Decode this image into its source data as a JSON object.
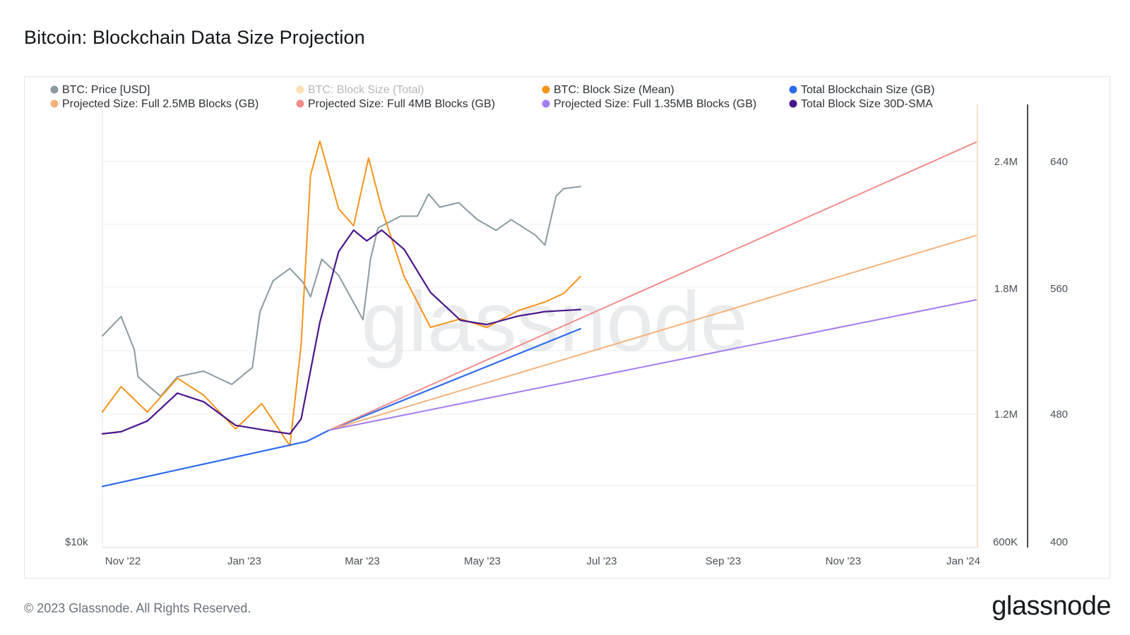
{
  "title": "Bitcoin: Blockchain Data Size Projection",
  "footer": {
    "copyright": "© 2023 Glassnode. All Rights Reserved.",
    "brand": "glassnode"
  },
  "watermark": "glassnode",
  "colors": {
    "price": "#8a9aa0",
    "block_total": "#f5a623",
    "block_mean": "#f7931a",
    "blockchain_size": "#2e6bf0",
    "proj_2_5mb": "#f6b27a",
    "proj_4mb": "#f28c8c",
    "proj_1_35mb": "#a57cf2",
    "sma30": "#4a148c"
  },
  "chart_data": {
    "type": "line",
    "title": "Bitcoin: Blockchain Data Size Projection",
    "x_ticks": [
      "Nov '22",
      "Jan '23",
      "Mar '23",
      "May '23",
      "Jul '23",
      "Sep '23",
      "Nov '23",
      "Jan '24"
    ],
    "y_left_ticks": [
      "$10k"
    ],
    "y_right_ticks": [
      "2.4M",
      "1.8M",
      "1.2M",
      "600K"
    ],
    "y_right2_ticks": [
      "640",
      "560",
      "480",
      "400"
    ],
    "y_right_range": [
      600000,
      2400000
    ],
    "y_right2_range": [
      400,
      640
    ],
    "grid": true,
    "legend_position": "top",
    "legend": [
      {
        "name": "BTC: Price [USD]",
        "color_key": "price",
        "faded": false
      },
      {
        "name": "BTC: Block Size (Total)",
        "color_key": "block_total",
        "faded": true
      },
      {
        "name": "BTC: Block Size (Mean)",
        "color_key": "block_mean",
        "faded": false
      },
      {
        "name": "Total Blockchain Size (GB)",
        "color_key": "blockchain_size",
        "faded": false
      },
      {
        "name": "Projected Size: Full 2.5MB Blocks (GB)",
        "color_key": "proj_2_5mb",
        "faded": false
      },
      {
        "name": "Projected Size: Full 4MB Blocks (GB)",
        "color_key": "proj_4mb",
        "faded": false
      },
      {
        "name": "Projected Size: Full 1.35MB Blocks (GB)",
        "color_key": "proj_1_35mb",
        "faded": false
      },
      {
        "name": "Total Block Size 30D-SMA",
        "color_key": "sma30",
        "faded": false
      }
    ],
    "series": [
      {
        "name": "BTC: Price [USD]",
        "color_key": "price",
        "x": [
          "2022-10-22",
          "2022-11-01",
          "2022-11-08",
          "2022-11-10",
          "2022-11-22",
          "2022-12-01",
          "2022-12-15",
          "2022-12-30",
          "2023-01-10",
          "2023-01-14",
          "2023-01-21",
          "2023-01-30",
          "2023-02-06",
          "2023-02-10",
          "2023-02-16",
          "2023-02-25",
          "2023-03-10",
          "2023-03-14",
          "2023-03-18",
          "2023-03-30",
          "2023-04-08",
          "2023-04-14",
          "2023-04-20",
          "2023-04-30",
          "2023-05-10",
          "2023-05-20",
          "2023-05-28",
          "2023-06-10",
          "2023-06-15",
          "2023-06-21",
          "2023-06-25",
          "2023-07-04"
        ],
        "values": [
          19300,
          20500,
          18500,
          17000,
          16000,
          17000,
          17300,
          16600,
          17500,
          20800,
          22900,
          23800,
          22800,
          21800,
          24500,
          23300,
          20300,
          24500,
          27000,
          28000,
          28000,
          30000,
          28800,
          29200,
          27700,
          26800,
          27700,
          26400,
          25600,
          29800,
          30500,
          30700
        ]
      },
      {
        "name": "BTC: Block Size (Mean)",
        "color_key": "block_mean",
        "x": [
          "2022-10-22",
          "2022-11-01",
          "2022-11-15",
          "2022-12-01",
          "2022-12-15",
          "2023-01-01",
          "2023-01-15",
          "2023-01-30",
          "2023-02-05",
          "2023-02-10",
          "2023-02-15",
          "2023-02-25",
          "2023-03-05",
          "2023-03-13",
          "2023-03-20",
          "2023-04-01",
          "2023-04-15",
          "2023-05-01",
          "2023-05-15",
          "2023-06-01",
          "2023-06-15",
          "2023-06-25",
          "2023-07-04"
        ],
        "values": [
          480,
          495,
          480,
          500,
          490,
          470,
          485,
          460,
          520,
          620,
          640,
          600,
          590,
          630,
          600,
          560,
          530,
          535,
          530,
          540,
          545,
          550,
          560
        ]
      },
      {
        "name": "Total Block Size 30D-SMA",
        "color_key": "sma30",
        "x": [
          "2022-10-22",
          "2022-11-01",
          "2022-11-15",
          "2022-12-01",
          "2022-12-15",
          "2023-01-01",
          "2023-01-15",
          "2023-01-30",
          "2023-02-05",
          "2023-02-15",
          "2023-02-25",
          "2023-03-05",
          "2023-03-12",
          "2023-03-20",
          "2023-04-01",
          "2023-04-15",
          "2023-05-01",
          "2023-05-15",
          "2023-06-01",
          "2023-06-15",
          "2023-07-04"
        ],
        "values": [
          1130000,
          1140000,
          1190000,
          1320000,
          1280000,
          1170000,
          1150000,
          1130000,
          1200000,
          1650000,
          1980000,
          2080000,
          2030000,
          2080000,
          1990000,
          1790000,
          1660000,
          1640000,
          1680000,
          1700000,
          1710000
        ]
      },
      {
        "name": "Total Blockchain Size (GB)",
        "color_key": "blockchain_size",
        "x": [
          "2022-10-22",
          "2023-02-08",
          "2023-02-20",
          "2023-07-04"
        ],
        "values": [
          438,
          466,
          473,
          536
        ]
      },
      {
        "name": "Projected Size: Full 4MB Blocks (GB)",
        "color_key": "proj_4mb",
        "x": [
          "2023-02-20",
          "2024-01-31"
        ],
        "values": [
          473,
          652
        ]
      },
      {
        "name": "Projected Size: Full 2.5MB Blocks (GB)",
        "color_key": "proj_2_5mb",
        "x": [
          "2023-02-20",
          "2024-01-31"
        ],
        "values": [
          473,
          594
        ]
      },
      {
        "name": "Projected Size: Full 1.35MB Blocks (GB)",
        "color_key": "proj_1_35mb",
        "x": [
          "2023-02-20",
          "2024-01-31"
        ],
        "values": [
          473,
          554
        ]
      }
    ]
  }
}
